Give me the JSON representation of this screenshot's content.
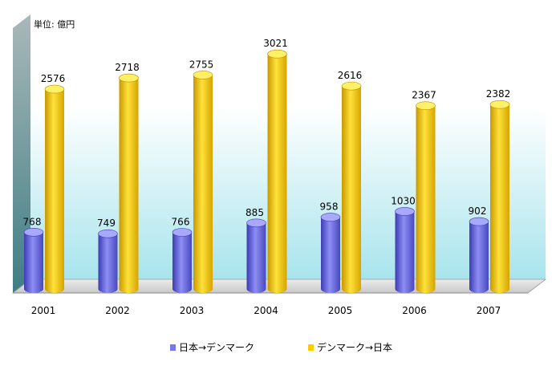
{
  "unit_label": "単位: 億円",
  "chart_data": {
    "type": "bar",
    "categories": [
      "2001",
      "2002",
      "2003",
      "2004",
      "2005",
      "2006",
      "2007"
    ],
    "series": [
      {
        "name": "日本→デンマーク",
        "values": [
          768,
          749,
          766,
          885,
          958,
          1030,
          902
        ],
        "color": "#7777ee"
      },
      {
        "name": "デンマーク→日本",
        "values": [
          2576,
          2718,
          2755,
          3021,
          2616,
          2367,
          2382
        ],
        "color": "#ffcc00"
      }
    ],
    "ylim": [
      0,
      3500
    ],
    "grid": false,
    "legend": "bottom",
    "data_labels": true
  }
}
